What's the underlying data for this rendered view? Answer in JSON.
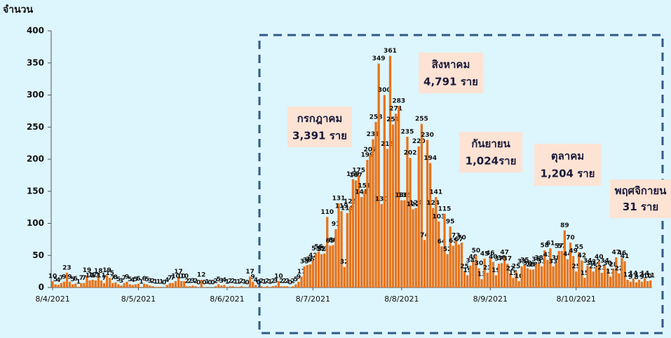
{
  "chart_data": {
    "type": "bar",
    "y_label": "จำนวน",
    "color": "#e8731a",
    "ylim": [
      0,
      400
    ],
    "yticks": [
      0,
      50,
      100,
      150,
      200,
      250,
      300,
      350,
      400
    ],
    "categories": [
      "8/4/2021",
      null,
      null,
      null,
      null,
      null,
      null,
      null,
      null,
      null,
      null,
      null,
      null,
      null,
      null,
      null,
      null,
      null,
      null,
      null,
      null,
      null,
      null,
      null,
      null,
      null,
      null,
      null,
      null,
      null,
      "8/5/2021",
      null,
      null,
      null,
      null,
      null,
      null,
      null,
      null,
      null,
      null,
      null,
      null,
      null,
      null,
      null,
      null,
      null,
      null,
      null,
      null,
      null,
      null,
      null,
      null,
      null,
      null,
      null,
      null,
      null,
      null,
      "8/6/2021",
      null,
      null,
      null,
      null,
      null,
      null,
      null,
      null,
      null,
      null,
      null,
      null,
      null,
      null,
      null,
      null,
      null,
      null,
      null,
      null,
      null,
      null,
      null,
      null,
      null,
      null,
      null,
      null,
      null,
      "8/7/2021",
      null,
      null,
      null,
      null,
      null,
      null,
      null,
      null,
      null,
      null,
      null,
      null,
      null,
      null,
      null,
      null,
      null,
      null,
      null,
      null,
      null,
      null,
      null,
      null,
      null,
      null,
      null,
      null,
      null,
      null,
      "8/8/2021",
      null,
      null,
      null,
      null,
      null,
      null,
      null,
      null,
      null,
      null,
      null,
      null,
      null,
      null,
      null,
      null,
      null,
      null,
      null,
      null,
      null,
      null,
      null,
      null,
      null,
      null,
      null,
      null,
      null,
      null,
      "8/9/2021",
      null,
      null,
      null,
      null,
      null,
      null,
      null,
      null,
      null,
      null,
      null,
      null,
      null,
      null,
      null,
      null,
      null,
      null,
      null,
      null,
      null,
      null,
      null,
      null,
      null,
      null,
      null,
      null,
      null,
      "8/10/2021",
      null,
      null,
      null,
      null,
      null,
      null,
      null,
      null,
      null,
      null,
      null,
      null,
      null,
      null,
      null,
      null,
      null,
      null,
      null,
      null,
      null,
      null,
      null,
      null,
      null,
      null
    ],
    "values": [
      10,
      5,
      4,
      7,
      9,
      23,
      9,
      5,
      6,
      1,
      7,
      7,
      19,
      11,
      12,
      11,
      18,
      11,
      7,
      19,
      15,
      7,
      8,
      5,
      3,
      7,
      9,
      5,
      4,
      5,
      6,
      1,
      6,
      5,
      3,
      2,
      1,
      1,
      1,
      0,
      4,
      7,
      7,
      10,
      17,
      10,
      10,
      2,
      2,
      3,
      2,
      0,
      12,
      0,
      1,
      0,
      0,
      2,
      5,
      3,
      4,
      1,
      2,
      2,
      1,
      1,
      2,
      1,
      0,
      17,
      9,
      4,
      0,
      2,
      1,
      2,
      1,
      2,
      3,
      10,
      2,
      2,
      2,
      0,
      2,
      5,
      9,
      17,
      33,
      35,
      36,
      42,
      53,
      56,
      52,
      53,
      110,
      65,
      66,
      91,
      131,
      119,
      32,
      116,
      126,
      169,
      167,
      175,
      141,
      151,
      199,
      207,
      231,
      258,
      349,
      130,
      300,
      216,
      361,
      254,
      271,
      283,
      136,
      136,
      235,
      202,
      122,
      124,
      220,
      255,
      74,
      230,
      194,
      124,
      141,
      103,
      64,
      115,
      52,
      95,
      65,
      73,
      67,
      70,
      25,
      19,
      34,
      40,
      50,
      30,
      13,
      45,
      23,
      46,
      40,
      19,
      37,
      38,
      47,
      37,
      22,
      15,
      25,
      10,
      33,
      35,
      30,
      28,
      28,
      36,
      38,
      33,
      58,
      43,
      61,
      33,
      38,
      57,
      57,
      89,
      44,
      70,
      49,
      25,
      55,
      42,
      15,
      34,
      30,
      25,
      32,
      40,
      23,
      34,
      30,
      17,
      28,
      47,
      22,
      46,
      41,
      12,
      9,
      14,
      8,
      12,
      9,
      14,
      10,
      11
    ],
    "annotations": [
      {
        "month": "กรกฎาคม",
        "total": "3,391 ราย"
      },
      {
        "month": "สิงหาคม",
        "total": "4,791 ราย"
      },
      {
        "month": "กันยายน",
        "total": "1,024ราย"
      },
      {
        "month": "ตุลาคม",
        "total": "1,204 ราย"
      },
      {
        "month": "พฤศจิกายน",
        "total": "31 ราย"
      }
    ]
  }
}
